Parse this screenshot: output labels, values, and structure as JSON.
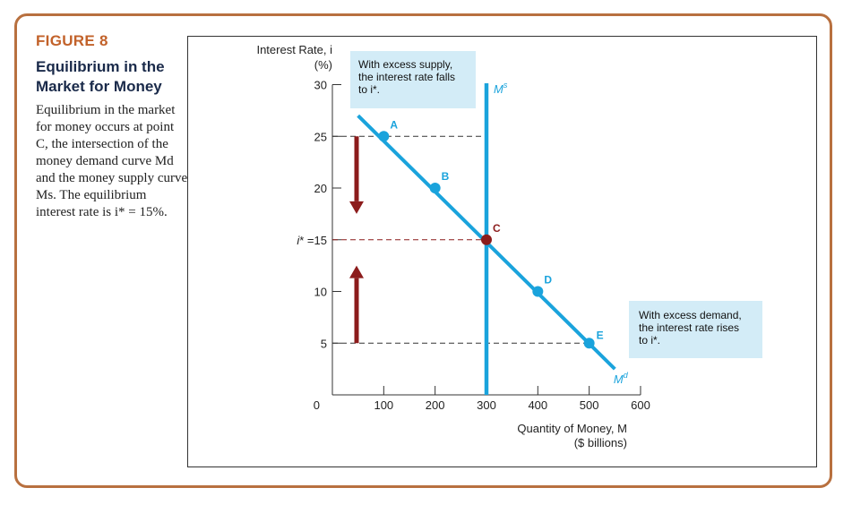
{
  "figure": {
    "label": "FIGURE 8",
    "title": "Equilibrium in the Market for Money",
    "caption": "Equilibrium in the market for money occurs at point C, the intersection of the money demand curve Md and the money supply curve Ms. The equilibrium interest rate is i* = 15%."
  },
  "colors": {
    "frame": "#b8703f",
    "label": "#c2622a",
    "title": "#1a2a4a",
    "curve": "#1aa3dc",
    "arrow": "#8c1c1c",
    "callout_bg": "#d3ecf7"
  },
  "chart_data": {
    "type": "line",
    "ylabel_line1": "Interest Rate, i",
    "ylabel_line2": "(%)",
    "xlabel_line1": "Quantity of Money, M",
    "xlabel_line2": "($ billions)",
    "xlim": [
      0,
      600
    ],
    "ylim": [
      0,
      30
    ],
    "x_ticks": [
      0,
      100,
      200,
      300,
      400,
      500,
      600
    ],
    "y_ticks": [
      5,
      10,
      15,
      20,
      25,
      30
    ],
    "y_tick_labels": [
      "5",
      "10",
      "i* =15",
      "20",
      "25",
      "30"
    ],
    "money_supply": {
      "name": "Ms",
      "x": 300
    },
    "money_demand": {
      "name": "Md",
      "x": [
        50,
        100,
        200,
        300,
        400,
        500,
        550
      ],
      "y": [
        27,
        25,
        20,
        15,
        10,
        5,
        2.5
      ]
    },
    "points": [
      {
        "label": "A",
        "x": 100,
        "y": 25,
        "equilibrium": false
      },
      {
        "label": "B",
        "x": 200,
        "y": 20,
        "equilibrium": false
      },
      {
        "label": "C",
        "x": 300,
        "y": 15,
        "equilibrium": true
      },
      {
        "label": "D",
        "x": 400,
        "y": 10,
        "equilibrium": false
      },
      {
        "label": "E",
        "x": 500,
        "y": 5,
        "equilibrium": false
      }
    ],
    "dashed_levels": [
      25,
      15,
      5
    ],
    "arrows": [
      {
        "direction": "down",
        "from": 25,
        "to": 17.5
      },
      {
        "direction": "up",
        "from": 5,
        "to": 12.5
      }
    ],
    "annotations": {
      "excess_supply": [
        "With excess supply,",
        "the interest rate falls",
        "to i*."
      ],
      "excess_demand": [
        "With excess demand,",
        "the interest rate rises",
        "to i*."
      ]
    }
  }
}
